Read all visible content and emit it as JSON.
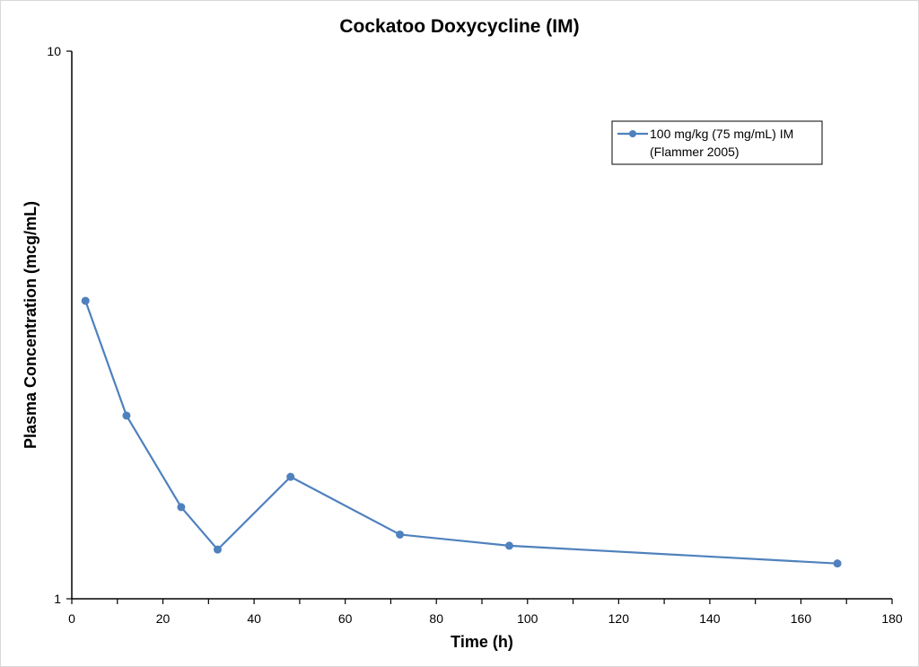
{
  "chart_data": {
    "type": "line",
    "title": "Cockatoo Doxycycline (IM)",
    "xlabel": "Time (h)",
    "ylabel": "Plasma Concentration (mcg/mL)",
    "xlim": [
      0,
      180
    ],
    "ylim": [
      1,
      10
    ],
    "y_scale": "log",
    "x_ticks": [
      "0",
      "20",
      "40",
      "60",
      "80",
      "100",
      "120",
      "140",
      "160",
      "180"
    ],
    "y_ticks": [
      "1",
      "10"
    ],
    "grid": false,
    "legend_position": "top-right",
    "series": [
      {
        "name": "100 mg/kg (75 mg/mL) IM (Flammer 2005)",
        "legend_lines": [
          "100 mg/kg (75 mg/mL) IM",
          "(Flammer 2005)"
        ],
        "color": "#4f81bd",
        "x": [
          3,
          12,
          24,
          32,
          48,
          72,
          96,
          168
        ],
        "y": [
          3.5,
          2.16,
          1.47,
          1.23,
          1.67,
          1.31,
          1.25,
          1.16
        ]
      }
    ]
  }
}
